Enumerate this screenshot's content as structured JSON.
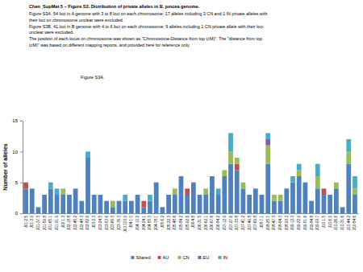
{
  "chart_data": {
    "type": "bar",
    "stacked": true,
    "title": "Chen_SupMat 5 – Figure S3.  Distribution of private alleles in B. juncea genome.",
    "subtitle": [
      "Figure S3A.  54 loci in A genome with 3 to 8 loci on each chromosome; 17 alleles including 3 CN and 1 IN private alleles with",
      "their loci on chromosome unclear were excluded.",
      "Figure S3B.  41 loci in B genome with 4 to 6 loci on each chromosome; 9 alleles including 1 CN private allele with their loci",
      "unclear were excluded.",
      "The position of each locus on chromosome was shown as \"Chromosome-Distance from top (cM)\".  The \"distance from top",
      "(cM)\" was based on different mapping reports, and provided here for reference only."
    ],
    "annotations": [
      "Figure S3A."
    ],
    "y_label": "Number of alleles",
    "ylim": [
      0,
      15
    ],
    "yticks": [
      0,
      5,
      10,
      15
    ],
    "grid": false,
    "legend": "bottom",
    "categories": [
      "J01-2.5",
      "J01-3.9",
      "J01-37.3",
      "J01-59.8",
      "J01-65.1",
      "J01-91.9",
      "J02-1.3",
      "J02-18.8",
      "J02-45.2",
      "J02-48.3",
      "J02-82.9",
      "J03-2.3",
      "J03-24.5",
      "J03-53.6",
      "J03-66.3",
      "J03-76.3",
      "J03-103.9",
      "J04-1.0",
      "J04-10.2",
      "J04-24.1",
      "J04-55.3",
      "J04-78.1",
      "J05-6.2",
      "J05-22.3",
      "J05-48.6",
      "J05-84.2",
      "J05-92.6",
      "J06-4.8",
      "J06-31.5",
      "J06-62.1",
      "J06-67.6",
      "J06-84.2",
      "J07-12.9",
      "J07-27.6",
      "J07-33.8",
      "J07-41.2",
      "J07-49.8",
      "J07-69.8",
      "J08-7.1",
      "J08-25.7",
      "J08-47.3",
      "J08-64.3",
      "J08-93.3",
      "J09-12.3",
      "J09-22.9",
      "J09-51.6",
      "J09-84.8",
      "J09-93.7",
      "J10-1.5",
      "J10-6.9",
      "J10-26.6",
      "J10-31.6",
      "J10-44.2",
      "J10-54.6"
    ],
    "series": [
      {
        "name": "Shared",
        "color": "#4f81bd",
        "values": [
          4,
          4,
          1,
          3,
          4,
          3,
          3,
          3,
          4,
          2,
          9,
          3,
          3,
          2,
          1,
          2,
          2,
          2,
          3,
          1,
          2,
          5,
          1,
          3,
          3,
          6,
          3,
          5,
          3,
          3,
          6,
          3,
          6,
          8,
          7,
          4,
          3,
          4,
          3,
          8,
          2,
          2,
          4,
          5,
          6,
          5,
          2,
          4,
          3,
          3,
          4,
          1,
          8,
          3
        ]
      },
      {
        "name": "AU",
        "color": "#c0504d",
        "values": [
          1,
          0,
          0,
          0,
          0,
          0,
          0,
          0,
          0,
          0,
          0,
          0,
          0,
          0,
          0,
          0,
          0,
          0,
          0,
          1,
          0,
          0,
          0,
          0,
          0,
          0,
          1,
          0,
          0,
          0,
          0,
          0,
          0,
          0,
          1,
          0,
          0,
          0,
          0,
          0,
          0,
          0,
          0,
          0,
          0,
          0,
          0,
          0,
          1,
          0,
          0,
          0,
          0,
          0
        ]
      },
      {
        "name": "CN",
        "color": "#9bbb59",
        "values": [
          0,
          0,
          0,
          0,
          0,
          0,
          1,
          0,
          0,
          0,
          0,
          0,
          0,
          0,
          1,
          0,
          0,
          0,
          0,
          0,
          0,
          0,
          0,
          0,
          1,
          0,
          0,
          0,
          0,
          1,
          0,
          0,
          1,
          2,
          1,
          1,
          0,
          0,
          0,
          3,
          1,
          1,
          0,
          0,
          1,
          0,
          0,
          2,
          0,
          0,
          1,
          0,
          2,
          1
        ]
      },
      {
        "name": "EU",
        "color": "#8064a2",
        "values": [
          0,
          0,
          0,
          0,
          0,
          0,
          0,
          0,
          0,
          0,
          0,
          0,
          0,
          0,
          0,
          0,
          0,
          0,
          0,
          0,
          0,
          0,
          0,
          0,
          0,
          0,
          0,
          0,
          0,
          0,
          0,
          0,
          0,
          0,
          0,
          0,
          0,
          0,
          0,
          1,
          0,
          0,
          0,
          0,
          0,
          0,
          0,
          0,
          0,
          0,
          0,
          0,
          0,
          0
        ]
      },
      {
        "name": "IN",
        "color": "#4bacc6",
        "values": [
          0,
          0,
          0,
          0,
          1,
          1,
          0,
          0,
          0,
          0,
          1,
          0,
          0,
          0,
          0,
          0,
          1,
          0,
          0,
          0,
          1,
          0,
          0,
          0,
          0,
          0,
          0,
          0,
          0,
          0,
          0,
          1,
          0,
          3,
          0,
          0,
          0,
          0,
          0,
          1,
          0,
          0,
          0,
          1,
          1,
          0,
          0,
          2,
          0,
          0,
          0,
          0,
          2,
          2
        ]
      }
    ]
  }
}
